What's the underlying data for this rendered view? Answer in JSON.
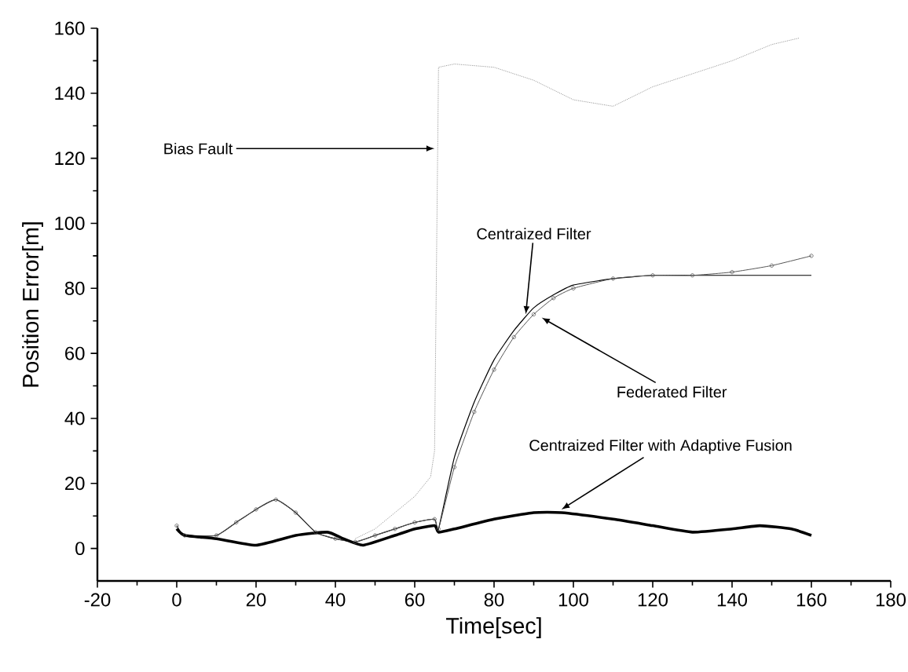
{
  "chart_data": {
    "type": "line",
    "xlabel": "Time[sec]",
    "ylabel": "Position Error[m]",
    "xlim": [
      -20,
      180
    ],
    "ylim": [
      -10,
      160
    ],
    "xticks": [
      -20,
      0,
      20,
      40,
      60,
      80,
      100,
      120,
      140,
      160,
      180
    ],
    "yticks": [
      0,
      20,
      40,
      60,
      80,
      100,
      120,
      140,
      160
    ],
    "grid": false,
    "series": [
      {
        "color": "#9a9a9a",
        "line_style": "dotted",
        "marker": "none",
        "x": [
          45,
          50,
          55,
          60,
          64,
          65,
          66,
          70,
          80,
          90,
          100,
          110,
          120,
          130,
          140,
          150,
          157
        ],
        "values": [
          3,
          6,
          11,
          16,
          22,
          30,
          148,
          149,
          148,
          144,
          138,
          136,
          142,
          146,
          150,
          155,
          157
        ]
      },
      {
        "color": "#000000",
        "line_style": "solid",
        "marker": "none",
        "x": [
          0,
          2,
          10,
          15,
          20,
          25,
          30,
          35,
          40,
          45,
          50,
          55,
          60,
          65,
          66,
          70,
          75,
          80,
          85,
          90,
          95,
          100,
          110,
          120,
          130,
          140,
          150,
          160
        ],
        "values": [
          7,
          4,
          4,
          8,
          12,
          15,
          11,
          5,
          3,
          2,
          4,
          6,
          8,
          9,
          6,
          28,
          45,
          58,
          67,
          74,
          78,
          81,
          83,
          84,
          84,
          84,
          84,
          84
        ]
      },
      {
        "color": "#555555",
        "line_style": "solid",
        "marker": "circle",
        "x": [
          0,
          2,
          10,
          15,
          20,
          25,
          30,
          35,
          40,
          45,
          50,
          55,
          60,
          65,
          66,
          70,
          75,
          80,
          85,
          90,
          95,
          100,
          110,
          120,
          130,
          140,
          150,
          160
        ],
        "values": [
          7,
          4,
          4,
          8,
          12,
          15,
          11,
          5,
          3,
          2,
          4,
          6,
          8,
          9,
          6,
          25,
          42,
          55,
          65,
          72,
          77,
          80,
          83,
          84,
          84,
          85,
          87,
          90
        ]
      },
      {
        "color": "#000000",
        "line_style": "solid",
        "marker": "none",
        "x": [
          0,
          2,
          10,
          20,
          30,
          38,
          42,
          47,
          55,
          60,
          65,
          66,
          70,
          80,
          90,
          97,
          110,
          120,
          130,
          140,
          147,
          155,
          160
        ],
        "values": [
          6,
          4,
          3,
          1,
          4,
          5,
          3,
          1,
          4,
          6,
          7,
          5,
          6,
          9,
          11,
          11,
          9,
          7,
          5,
          6,
          7,
          6,
          4
        ]
      }
    ],
    "annotations": [
      {
        "text": "Bias Fault",
        "x": 65,
        "y": 123
      },
      {
        "text": "Centraized Filter",
        "x": 88,
        "y": 72
      },
      {
        "text": "Federated Filter",
        "x": 92,
        "y": 71
      },
      {
        "text": "Centraized Filter with Adaptive Fusion",
        "x": 97,
        "y": 12
      }
    ]
  }
}
